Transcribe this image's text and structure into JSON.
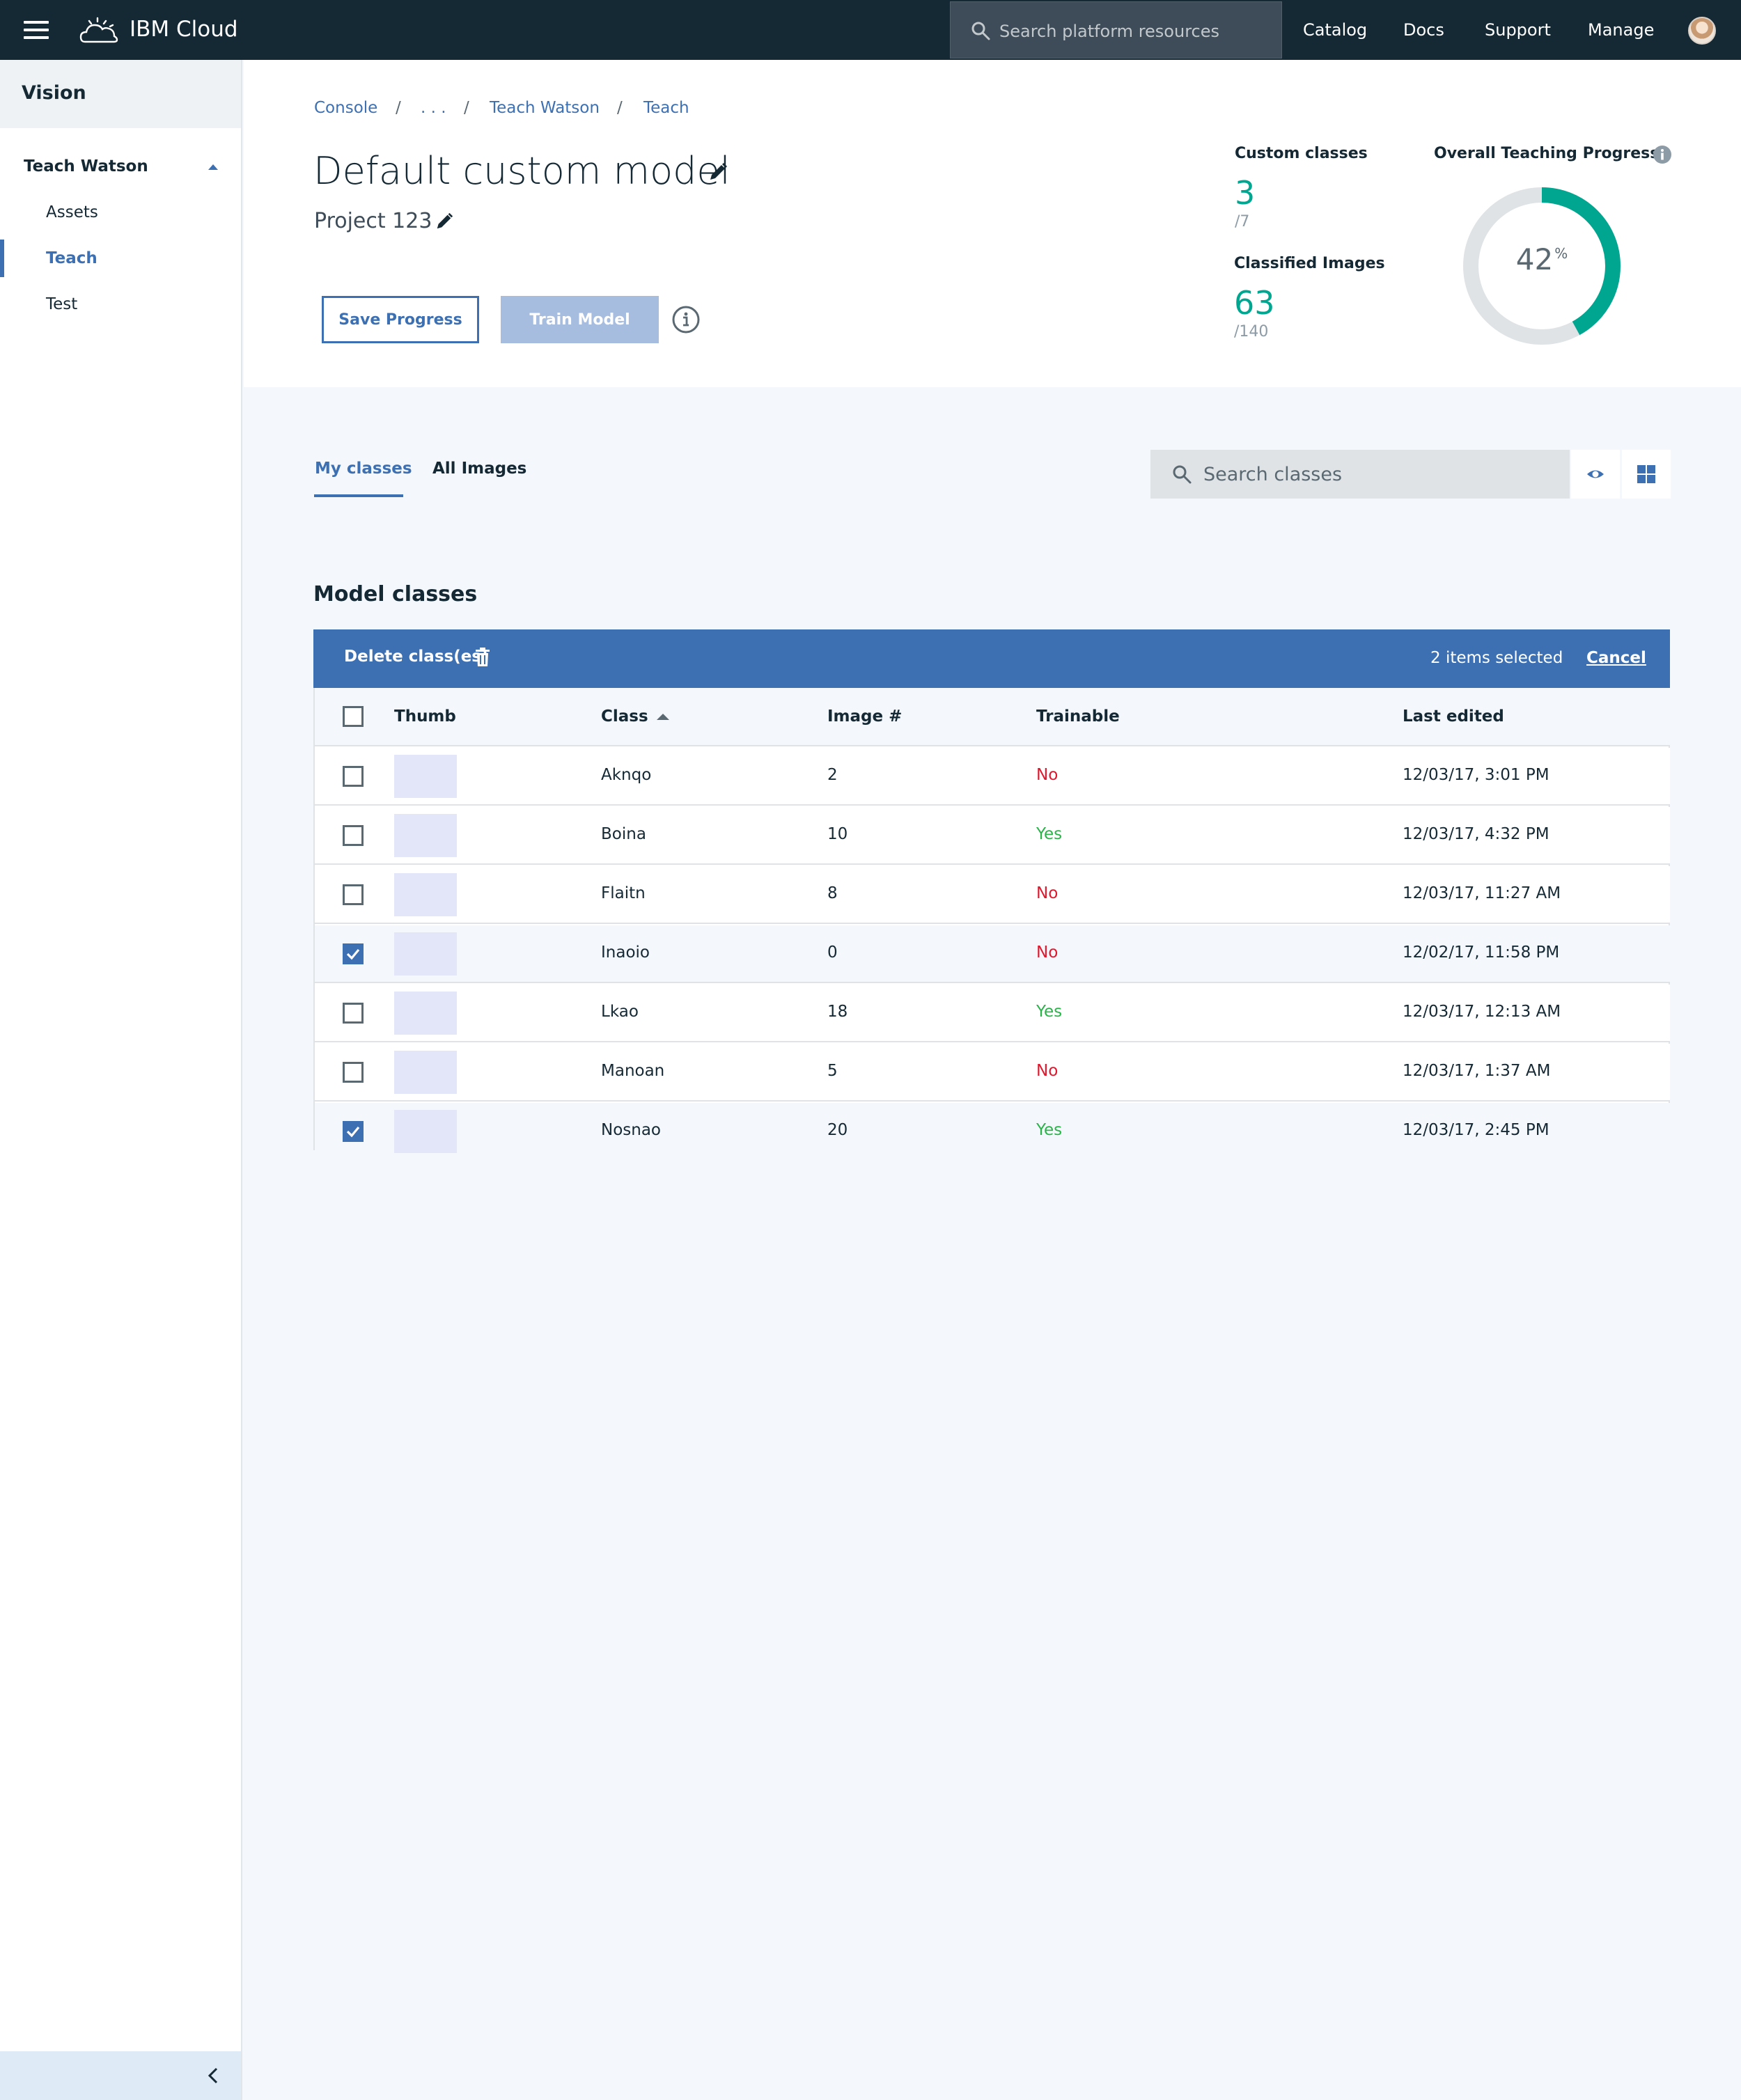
{
  "topbar": {
    "brand": "IBM Cloud",
    "search_placeholder": "Search platform resources",
    "nav": [
      "Catalog",
      "Docs",
      "Support",
      "Manage"
    ]
  },
  "sidebar": {
    "title": "Vision",
    "section": "Teach Watson",
    "items": [
      {
        "label": "Assets",
        "active": false
      },
      {
        "label": "Teach",
        "active": true
      },
      {
        "label": "Test",
        "active": false
      }
    ]
  },
  "breadcrumb": {
    "items": [
      "Console",
      ". . .",
      "Teach Watson",
      "Teach"
    ],
    "separator": "/"
  },
  "header": {
    "title": "Default custom model",
    "project": "Project 123",
    "save_label": "Save Progress",
    "train_label": "Train Model"
  },
  "stats": {
    "custom_classes_label": "Custom classes",
    "custom_classes_value": "3",
    "custom_classes_total": "/7",
    "classified_images_label": "Classified Images",
    "classified_images_value": "63",
    "classified_images_total": "/140",
    "progress_label": "Overall Teaching Progress",
    "progress_value": "42",
    "progress_unit": "%",
    "progress_fraction": 0.42
  },
  "tabs": [
    {
      "label": "My classes",
      "active": true
    },
    {
      "label": "All Images",
      "active": false
    }
  ],
  "class_search": {
    "placeholder": "Search classes"
  },
  "model_classes": {
    "title": "Model classes",
    "batch": {
      "delete_label": "Delete class(es)",
      "selected_label": "2 items selected",
      "cancel_label": "Cancel"
    },
    "columns": {
      "thumb": "Thumb",
      "class": "Class",
      "images": "Image #",
      "trainable": "Trainable",
      "last_edited": "Last edited"
    },
    "rows": [
      {
        "checked": false,
        "class": "Aknqo",
        "images": "2",
        "trainable": "No",
        "last_edited": "12/03/17, 3:01 PM"
      },
      {
        "checked": false,
        "class": "Boina",
        "images": "10",
        "trainable": "Yes",
        "last_edited": "12/03/17, 4:32 PM"
      },
      {
        "checked": false,
        "class": "Flaitn",
        "images": "8",
        "trainable": "No",
        "last_edited": "12/03/17, 11:27 AM"
      },
      {
        "checked": true,
        "class": "Inaoio",
        "images": "0",
        "trainable": "No",
        "last_edited": "12/02/17, 11:58 PM"
      },
      {
        "checked": false,
        "class": "Lkao",
        "images": "18",
        "trainable": "Yes",
        "last_edited": "12/03/17, 12:13 AM"
      },
      {
        "checked": false,
        "class": "Manoan",
        "images": "5",
        "trainable": "No",
        "last_edited": "12/03/17, 1:37 AM"
      },
      {
        "checked": true,
        "class": "Nosnao",
        "images": "20",
        "trainable": "Yes",
        "last_edited": "12/03/17, 2:45 PM"
      }
    ]
  },
  "colors": {
    "topbar": "#152935",
    "accent": "#3d70b2",
    "progress": "#00a68f",
    "no": "#e0182d",
    "yes": "#2bb34a"
  },
  "icons": [
    "hamburger-icon",
    "cloud-logo-icon",
    "search-icon",
    "avatar",
    "caret-up-icon",
    "pencil-icon",
    "info-icon",
    "eye-icon",
    "grid-icon",
    "trash-icon",
    "sort-up-icon",
    "checkbox-icon",
    "chevron-left-icon"
  ]
}
